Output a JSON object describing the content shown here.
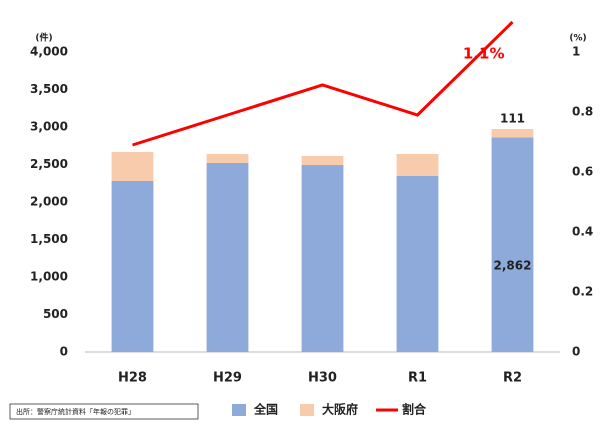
{
  "chart_data": {
    "type": "bar",
    "y_unit_label": "(件)",
    "y2_unit_label": "(%)",
    "categories": [
      "H28",
      "H29",
      "H30",
      "R1",
      "R2"
    ],
    "series": [
      {
        "name": "全国",
        "color": "#8eaadb",
        "values": [
          2280,
          2520,
          2493,
          2347,
          2862
        ],
        "value_labels": [
          null,
          null,
          null,
          null,
          "2,862"
        ]
      },
      {
        "name": "大阪府",
        "color": "#f8cbad",
        "values": [
          387,
          120,
          120,
          293,
          111
        ],
        "value_labels": [
          null,
          null,
          null,
          null,
          "111"
        ]
      },
      {
        "name": "割合",
        "type": "line",
        "axis": "y2",
        "color": "#ff0000",
        "values": [
          0.69,
          0.79,
          0.89,
          0.79,
          1.1
        ],
        "value_labels": [
          null,
          null,
          null,
          null,
          "1.1%"
        ]
      }
    ],
    "ylim": [
      0,
      4000
    ],
    "yticks": [
      0,
      500,
      {
        "value": 1000,
        "label": "1,000"
      },
      {
        "value": 1500,
        "label": "1,500"
      },
      {
        "value": 2000,
        "label": "2,000"
      },
      {
        "value": 2500,
        "label": "2,500"
      },
      {
        "value": 3000,
        "label": "3,000"
      },
      {
        "value": 3500,
        "label": "3,500"
      },
      {
        "value": 4000,
        "label": "4,000"
      }
    ],
    "y2lim": [
      0,
      1
    ],
    "y2ticks": [
      0,
      0.2,
      0.4,
      0.6,
      0.8,
      1
    ],
    "source": "出所：警察庁統計資料「年報の犯罪」",
    "legend": "bottom"
  }
}
